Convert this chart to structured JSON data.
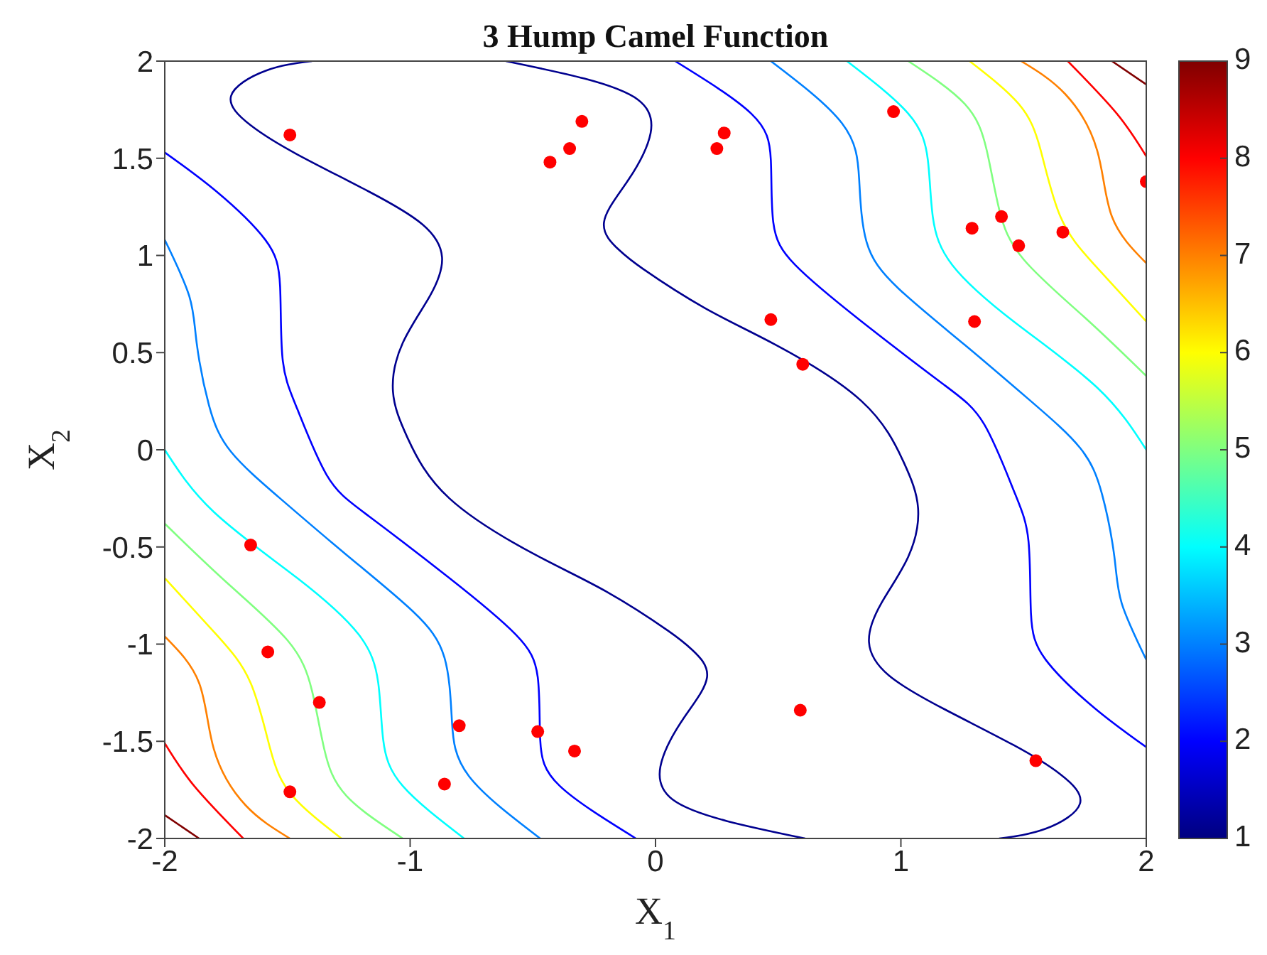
{
  "chart_data": {
    "type": "scatter",
    "title": "3 Hump Camel Function",
    "xlabel": "X$_{1}$",
    "ylabel": "X$_{2}$",
    "xlim": [
      -2,
      2
    ],
    "xticks": [
      -2,
      -1,
      0,
      1,
      2
    ],
    "ylim": [
      -2,
      2
    ],
    "yticks": [
      -2,
      -1.5,
      -1,
      -0.5,
      0,
      0.5,
      1,
      1.5,
      2
    ],
    "clim": [
      1,
      9
    ],
    "cticks": [
      1,
      2,
      3,
      4,
      5,
      6,
      7,
      8,
      9
    ],
    "grid": false,
    "legend": false,
    "marker": "circle",
    "series": [
      {
        "type": "line",
        "marker": "none",
        "color": "#00008f",
        "x": [
          -1.4,
          -1.59,
          -1.73,
          -1.65,
          -1.46,
          -1.17,
          -0.95,
          -0.87,
          -0.92,
          -1.03,
          -1.07,
          -1.01,
          -0.84,
          -0.49,
          -0.2,
          0.05,
          0.15,
          0.21,
          0.11,
          0.02,
          0.07,
          0.29,
          0.61
        ],
        "values": [
          2,
          1.95,
          1.82,
          1.67,
          1.52,
          1.33,
          1.16,
          0.99,
          0.79,
          0.55,
          0.3,
          0.06,
          -0.25,
          -0.54,
          -0.73,
          -0.93,
          -1.03,
          -1.17,
          -1.39,
          -1.63,
          -1.8,
          -1.91,
          -2
        ]
      },
      {
        "type": "line",
        "marker": "none",
        "color": "#00008f",
        "x": [
          1.4,
          1.59,
          1.73,
          1.65,
          1.46,
          1.17,
          0.95,
          0.87,
          0.92,
          1.03,
          1.07,
          1.01,
          0.84,
          0.49,
          0.2,
          -0.05,
          -0.15,
          -0.21,
          -0.11,
          -0.02,
          -0.07,
          -0.29,
          -0.61
        ],
        "values": [
          -2,
          -1.95,
          -1.82,
          -1.67,
          -1.52,
          -1.33,
          -1.16,
          -0.99,
          -0.79,
          -0.55,
          -0.3,
          -0.06,
          0.25,
          0.54,
          0.73,
          0.93,
          1.03,
          1.17,
          1.39,
          1.63,
          1.8,
          1.91,
          2
        ]
      },
      {
        "type": "line",
        "marker": "none",
        "color": "#0000ff",
        "x": [
          -2,
          -1.79,
          -1.59,
          -1.53,
          -1.52,
          -1.46,
          -1.34,
          -1.17,
          -0.84,
          -0.57,
          -0.48,
          -0.47,
          -0.39,
          -0.08
        ],
        "values": [
          1.53,
          1.33,
          1.08,
          0.84,
          0.47,
          0.21,
          -0.13,
          -0.34,
          -0.66,
          -0.95,
          -1.17,
          -1.49,
          -1.73,
          -2
        ]
      },
      {
        "type": "line",
        "marker": "none",
        "color": "#0000ff",
        "x": [
          2,
          1.79,
          1.59,
          1.53,
          1.52,
          1.46,
          1.34,
          1.17,
          0.84,
          0.57,
          0.48,
          0.47,
          0.39,
          0.08
        ],
        "values": [
          -1.53,
          -1.33,
          -1.08,
          -0.84,
          -0.47,
          -0.21,
          0.13,
          0.34,
          0.66,
          0.95,
          1.17,
          1.49,
          1.73,
          2
        ]
      },
      {
        "type": "line",
        "marker": "none",
        "color": "#0080ff",
        "x": [
          -2,
          -1.9,
          -1.87,
          -1.82,
          -1.73,
          -1.53,
          -1.26,
          -0.99,
          -0.86,
          -0.83,
          -0.76,
          -0.47
        ],
        "values": [
          1.08,
          0.79,
          0.55,
          0.23,
          -0.01,
          -0.25,
          -0.54,
          -0.83,
          -1.07,
          -1.39,
          -1.68,
          -2
        ]
      },
      {
        "type": "line",
        "marker": "none",
        "color": "#0080ff",
        "x": [
          2,
          1.9,
          1.87,
          1.82,
          1.73,
          1.53,
          1.26,
          0.99,
          0.86,
          0.83,
          0.76,
          0.47
        ],
        "values": [
          -1.08,
          -0.79,
          -0.55,
          -0.23,
          0.01,
          0.25,
          0.54,
          0.83,
          1.07,
          1.39,
          1.68,
          2
        ]
      },
      {
        "type": "line",
        "marker": "none",
        "color": "#00ffff",
        "x": [
          -2,
          -1.8,
          -1.46,
          -1.21,
          -1.13,
          -1.11,
          -1.03,
          -0.78
        ],
        "values": [
          0,
          -0.32,
          -0.66,
          -0.95,
          -1.2,
          -1.49,
          -1.73,
          -2
        ]
      },
      {
        "type": "line",
        "marker": "none",
        "color": "#00ffff",
        "x": [
          2,
          1.8,
          1.46,
          1.21,
          1.13,
          1.11,
          1.03,
          0.78
        ],
        "values": [
          0,
          0.32,
          0.66,
          0.95,
          1.2,
          1.49,
          1.73,
          2
        ]
      },
      {
        "type": "line",
        "marker": "none",
        "color": "#80ff80",
        "x": [
          -2,
          -1.75,
          -1.5,
          -1.4,
          -1.35,
          -1.26,
          -1.03
        ],
        "values": [
          -0.38,
          -0.68,
          -0.98,
          -1.24,
          -1.54,
          -1.78,
          -2
        ]
      },
      {
        "type": "line",
        "marker": "none",
        "color": "#80ff80",
        "x": [
          2,
          1.75,
          1.5,
          1.4,
          1.35,
          1.26,
          1.03
        ],
        "values": [
          0.38,
          0.68,
          0.98,
          1.24,
          1.54,
          1.78,
          2
        ]
      },
      {
        "type": "line",
        "marker": "none",
        "color": "#ffff00",
        "x": [
          -2,
          -1.79,
          -1.65,
          -1.57,
          -1.48,
          -1.28
        ],
        "values": [
          -0.66,
          -0.95,
          -1.2,
          -1.54,
          -1.78,
          -2
        ]
      },
      {
        "type": "line",
        "marker": "none",
        "color": "#ffff00",
        "x": [
          2,
          1.79,
          1.65,
          1.57,
          1.48,
          1.28
        ],
        "values": [
          0.66,
          0.95,
          1.2,
          1.54,
          1.78,
          2
        ]
      },
      {
        "type": "line",
        "marker": "none",
        "color": "#ff8000",
        "x": [
          -2,
          -1.86,
          -1.8,
          -1.67,
          -1.49
        ],
        "values": [
          -0.96,
          -1.2,
          -1.54,
          -1.83,
          -2
        ]
      },
      {
        "type": "line",
        "marker": "none",
        "color": "#ff8000",
        "x": [
          2,
          1.86,
          1.8,
          1.67,
          1.49
        ],
        "values": [
          0.96,
          1.2,
          1.54,
          1.83,
          2
        ]
      },
      {
        "type": "line",
        "marker": "none",
        "color": "#ff0000",
        "x": [
          -2,
          -1.88,
          -1.68
        ],
        "values": [
          -1.51,
          -1.73,
          -2
        ]
      },
      {
        "type": "line",
        "marker": "none",
        "color": "#ff0000",
        "x": [
          2,
          1.88,
          1.68
        ],
        "values": [
          1.51,
          1.73,
          2
        ]
      },
      {
        "type": "line",
        "marker": "none",
        "color": "#800000",
        "x": [
          -2,
          -1.86
        ],
        "values": [
          -1.88,
          -2
        ]
      },
      {
        "type": "line",
        "marker": "none",
        "color": "#800000",
        "x": [
          2,
          1.86
        ],
        "values": [
          1.88,
          2
        ]
      },
      {
        "color": "#ff0000",
        "x": [
          -1.49,
          -0.3,
          -0.35,
          -0.43,
          0.28,
          0.25,
          0.97,
          2.0,
          1.29,
          1.41,
          1.48,
          1.66,
          0.47,
          1.3,
          0.6,
          -1.65,
          -1.58,
          -1.37,
          -1.49,
          -0.8,
          -0.86,
          -0.48,
          -0.33,
          0.59,
          1.55
        ],
        "values": [
          1.62,
          1.69,
          1.55,
          1.48,
          1.63,
          1.55,
          1.74,
          1.38,
          1.14,
          1.2,
          1.05,
          1.12,
          0.67,
          0.66,
          0.44,
          -0.49,
          -1.04,
          -1.3,
          -1.76,
          -1.42,
          -1.72,
          -1.45,
          -1.55,
          -1.34,
          -1.6
        ]
      }
    ]
  }
}
